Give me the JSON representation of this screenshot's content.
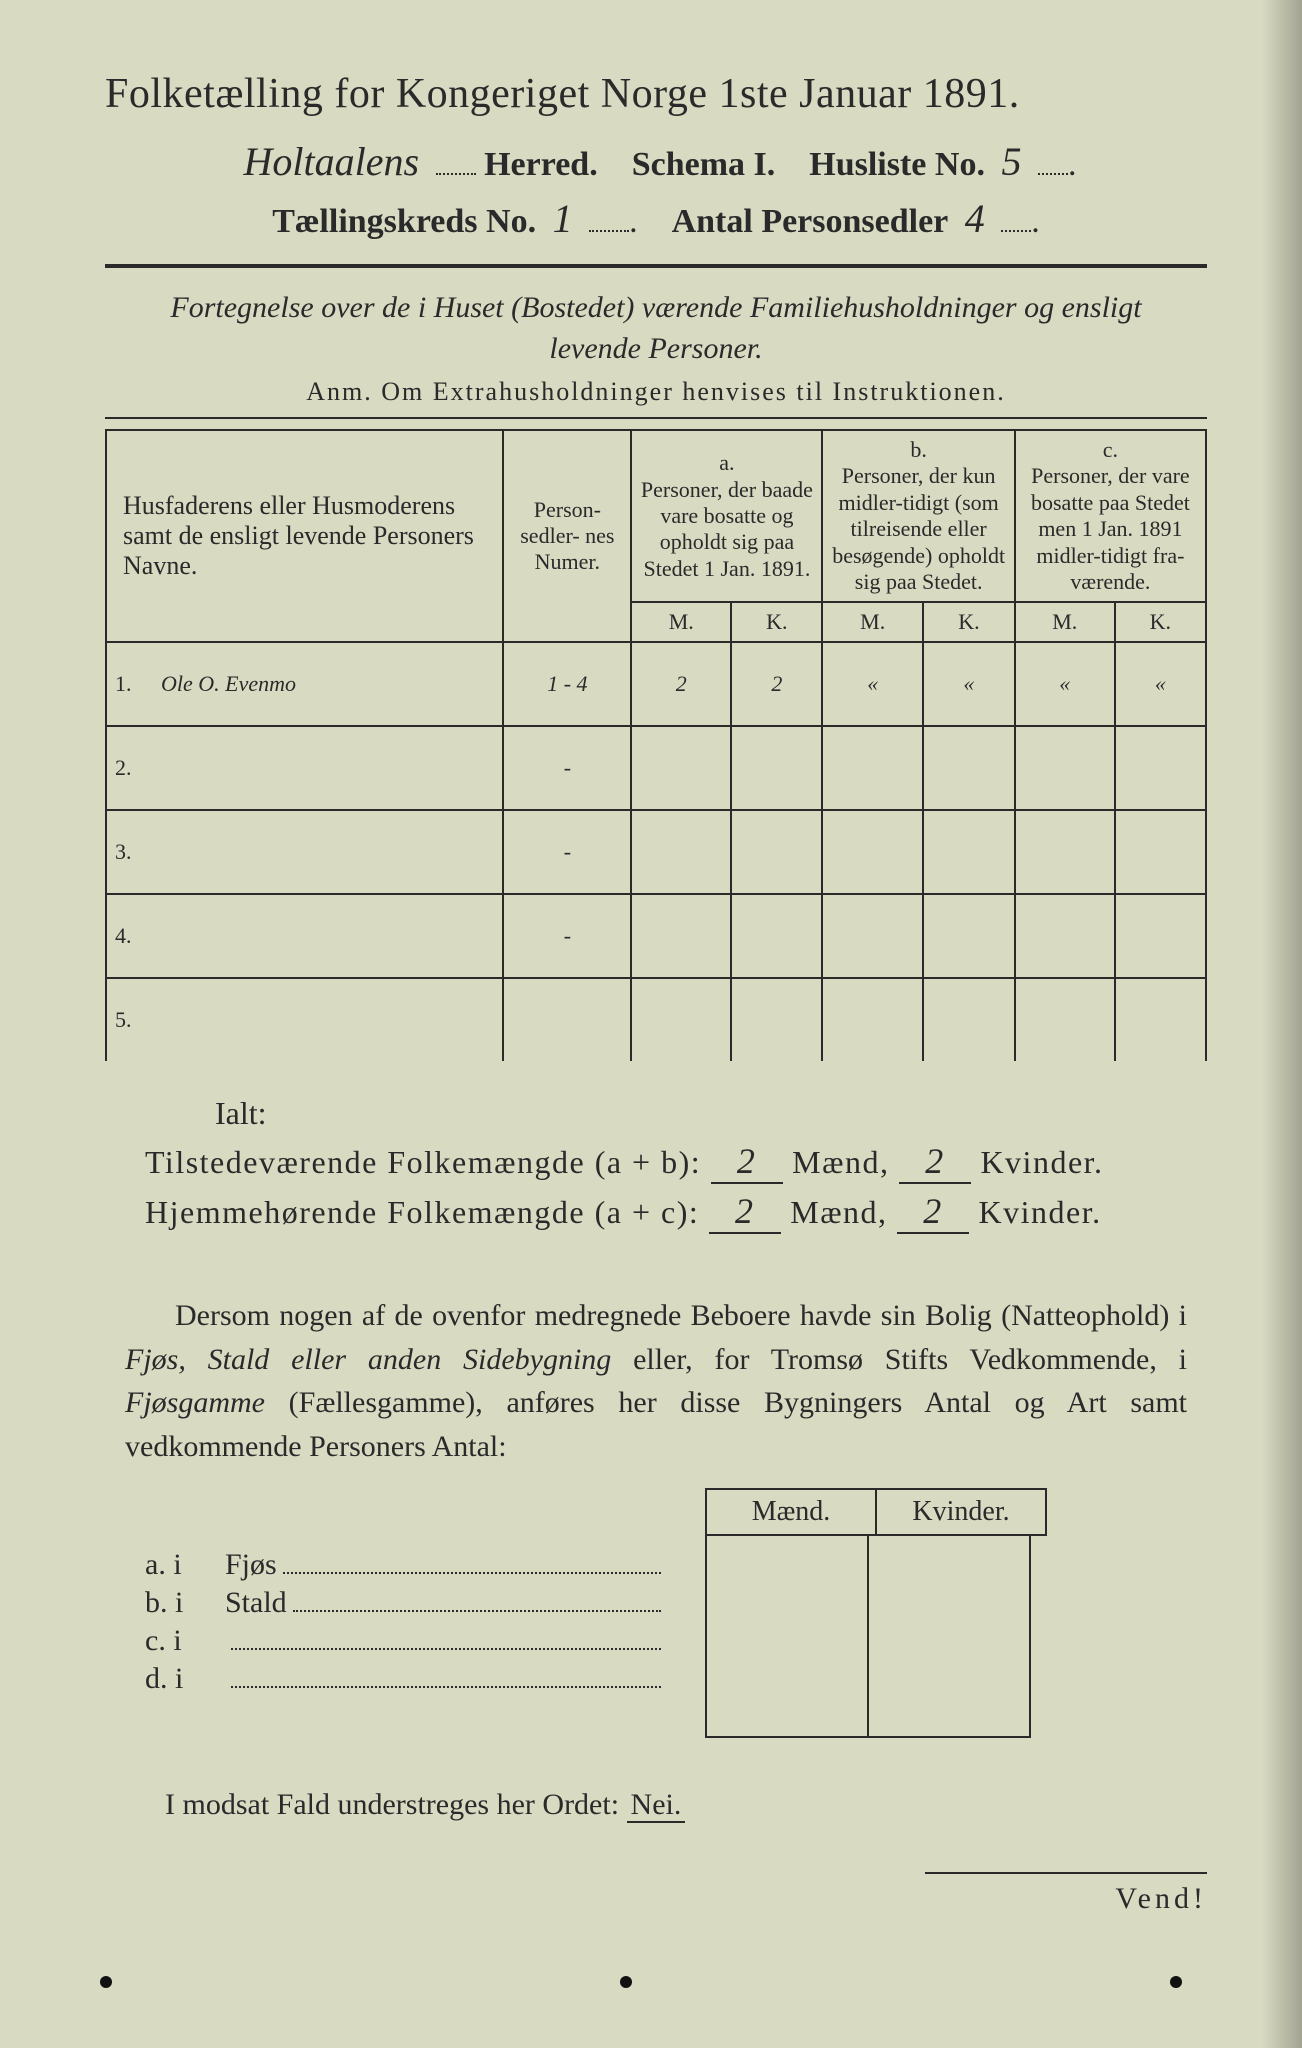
{
  "title": "Folketælling for Kongeriget Norge 1ste Januar 1891.",
  "line2": {
    "herred_hw": "Holtaalens",
    "herred": "Herred.",
    "schema": "Schema I.",
    "husliste": "Husliste No.",
    "husliste_hw": "5"
  },
  "line3": {
    "kreds": "Tællingskreds No.",
    "kreds_hw": "1",
    "antal": "Antal Personsedler",
    "antal_hw": "4"
  },
  "subtitle_it": "Fortegnelse over de i Huset (Bostedet) værende Familiehusholdninger og ensligt levende Personer.",
  "anm": "Anm. Om Extrahusholdninger henvises til Instruktionen.",
  "table": {
    "col_names": "Husfaderens eller Husmoderens samt de ensligt levende Personers Navne.",
    "col_numer": "Person-\nsedler-\nnes\nNumer.",
    "col_a_top": "a.",
    "col_a": "Personer, der baade vare bosatte og opholdt sig paa Stedet 1 Jan. 1891.",
    "col_b_top": "b.",
    "col_b": "Personer, der kun midler-tidigt (som tilreisende eller besøgende) opholdt sig paa Stedet.",
    "col_c_top": "c.",
    "col_c": "Personer, der vare bosatte paa Stedet men 1 Jan. 1891 midler-tidigt fra-værende.",
    "M": "M.",
    "K": "K.",
    "rows": [
      {
        "n": "1.",
        "name": "Ole O. Evenmo",
        "numer": "1 - 4",
        "aM": "2",
        "aK": "2",
        "bM": "«",
        "bK": "«",
        "cM": "«",
        "cK": "«"
      },
      {
        "n": "2.",
        "name": "",
        "numer": "-",
        "aM": "",
        "aK": "",
        "bM": "",
        "bK": "",
        "cM": "",
        "cK": ""
      },
      {
        "n": "3.",
        "name": "",
        "numer": "-",
        "aM": "",
        "aK": "",
        "bM": "",
        "bK": "",
        "cM": "",
        "cK": ""
      },
      {
        "n": "4.",
        "name": "",
        "numer": "-",
        "aM": "",
        "aK": "",
        "bM": "",
        "bK": "",
        "cM": "",
        "cK": ""
      },
      {
        "n": "5.",
        "name": "",
        "numer": "",
        "aM": "",
        "aK": "",
        "bM": "",
        "bK": "",
        "cM": "",
        "cK": ""
      }
    ]
  },
  "ialt": "Ialt:",
  "sum1": {
    "label": "Tilstedeværende Folkemængde (a + b):",
    "m": "2",
    "mw": "Mænd,",
    "k": "2",
    "kw": "Kvinder."
  },
  "sum2": {
    "label": "Hjemmehørende Folkemængde (a + c):",
    "m": "2",
    "mw": "Mænd,",
    "k": "2",
    "kw": "Kvinder."
  },
  "para": "Dersom nogen af de ovenfor medregnede Beboere havde sin Bolig (Natteophold) i <em>Fjøs, Stald eller anden Sidebygning</em> eller, for Tromsø Stifts Vedkommende, i <em>Fjøsgamme</em> (Fællesgamme), anføres her disse Bygningers Antal og Art samt vedkommende Personers Antal:",
  "byg_head_m": "Mænd.",
  "byg_head_k": "Kvinder.",
  "byg_rows": [
    {
      "lab": "a.  i",
      "txt": "Fjøs"
    },
    {
      "lab": "b.  i",
      "txt": "Stald"
    },
    {
      "lab": "c.  i",
      "txt": ""
    },
    {
      "lab": "d.  i",
      "txt": ""
    }
  ],
  "nei_line": "I modsat Fald understreges her Ordet:",
  "nei": "Nei.",
  "vend": "Vend!",
  "colors": {
    "paper": "#d8dac2",
    "ink": "#2a2a2a"
  }
}
